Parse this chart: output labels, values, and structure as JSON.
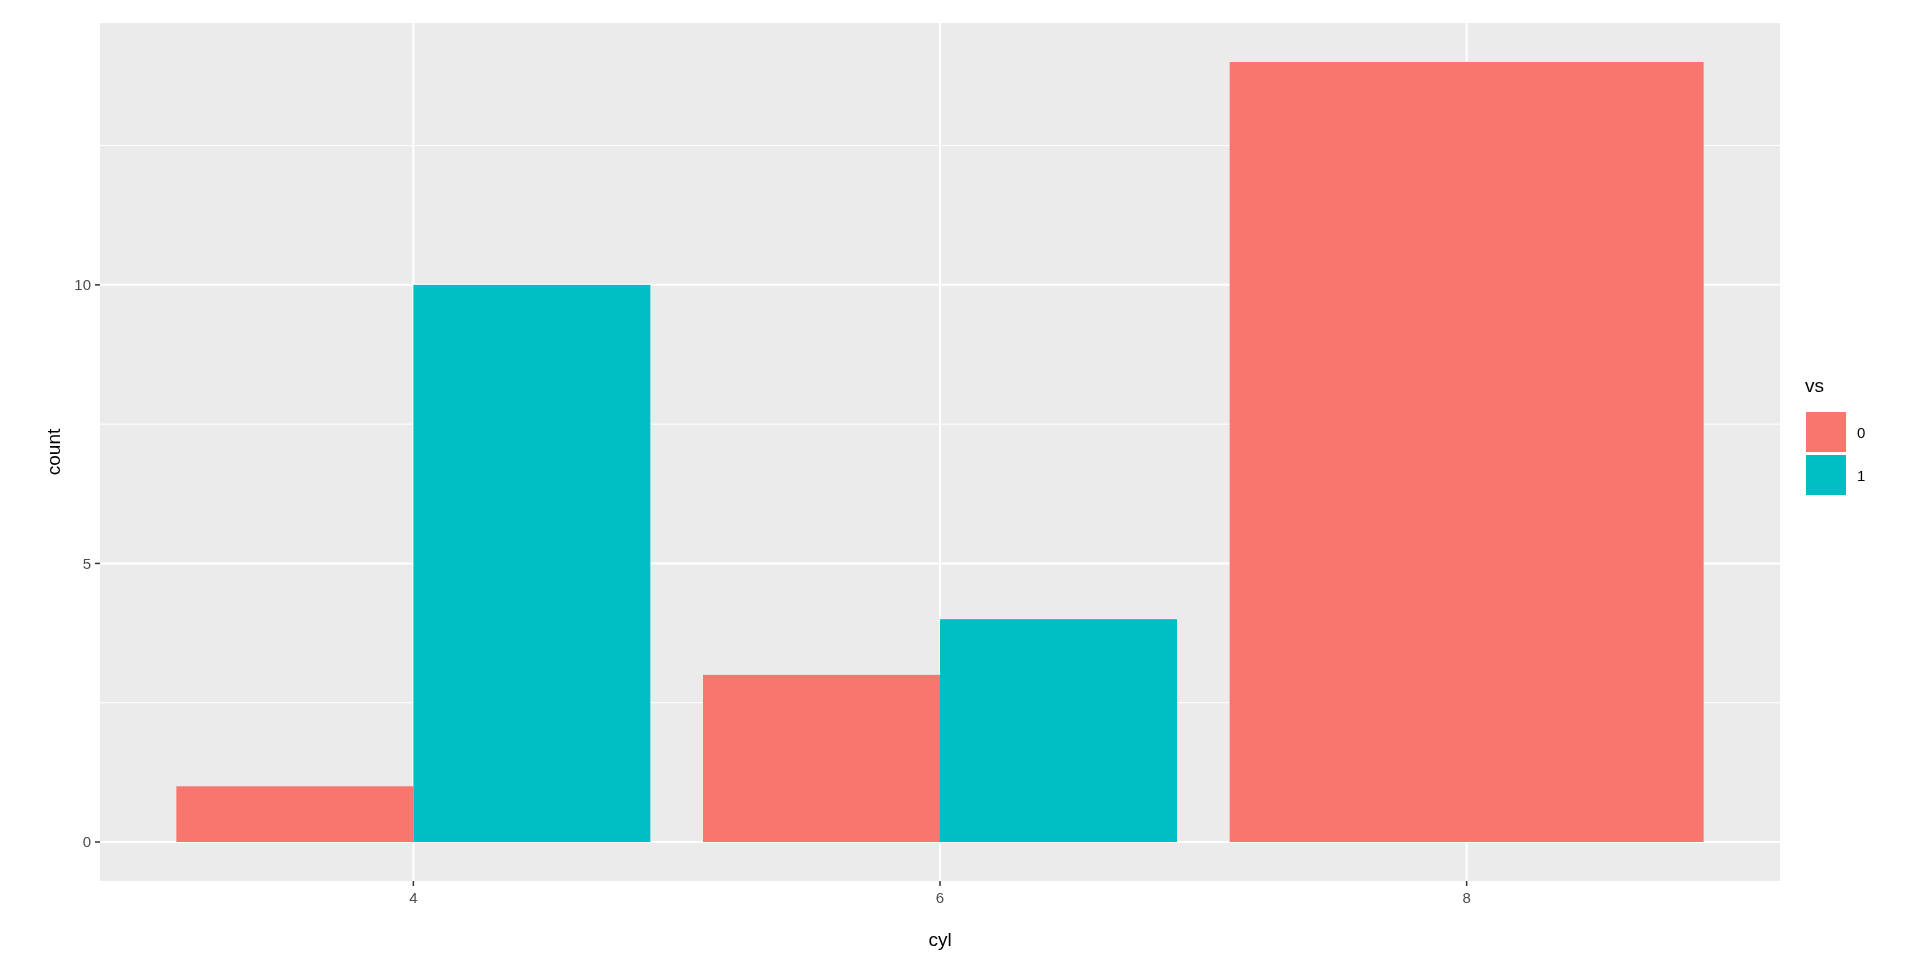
{
  "chart_data": {
    "type": "bar",
    "xlabel": "cyl",
    "ylabel": "count",
    "legend_title": "vs",
    "legend": "right",
    "grid": true,
    "x": [
      4,
      6,
      8
    ],
    "series": [
      {
        "name": "0",
        "color": "#f8766d",
        "values": [
          1,
          3,
          14
        ]
      },
      {
        "name": "1",
        "color": "#00bfc4",
        "values": [
          10,
          4,
          null
        ]
      }
    ],
    "xlim": [
      2.81,
      9.19
    ],
    "xticks": [
      4,
      6,
      8
    ],
    "ylim": [
      -0.7,
      14.7
    ],
    "yticks": [
      0,
      5,
      10
    ]
  }
}
